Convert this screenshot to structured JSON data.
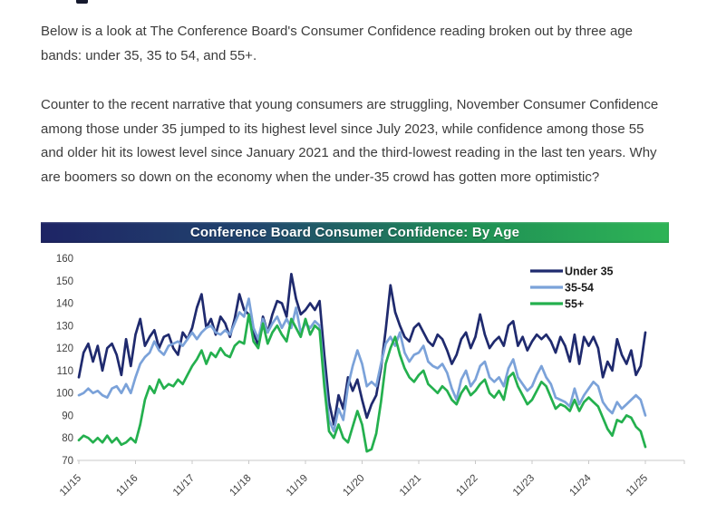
{
  "article": {
    "paragraph1": "Below is a look at The Conference Board's Consumer Confidence reading broken out by three age bands: under 35, 35 to 54, and 55+.",
    "paragraph2": "Counter to the recent narrative that young consumers are struggling, November Consumer Confidence among those under 35 jumped to its highest level since July 2023, while confidence among those 55 and older hit its lowest level since January 2021 and the third-lowest reading in the last ten years.  Why are boomers so down on the economy when the under-35 crowd has gotten more optimistic?"
  },
  "chart": {
    "title": "Conference Board Consumer Confidence: By Age",
    "title_bar_gradient": [
      "#1e2465",
      "#21456e",
      "#1f8f55",
      "#2eb456"
    ],
    "axis_color": "#c8c8c8",
    "tick_label_color": "#404040",
    "legend_text_color": "#1a1a1a"
  },
  "chart_data": {
    "type": "line",
    "title": "Conference Board Consumer Confidence: By Age",
    "x_start": "2015-11",
    "x_end": "2025-11",
    "x_frequency": "monthly",
    "x_tick_labels": [
      "11/15",
      "11/16",
      "11/17",
      "11/18",
      "11/19",
      "11/20",
      "11/21",
      "11/22",
      "11/23",
      "11/24",
      "11/25"
    ],
    "ylim": [
      70,
      160
    ],
    "ytick_step": 10,
    "yticks": [
      70,
      80,
      90,
      100,
      110,
      120,
      130,
      140,
      150,
      160
    ],
    "grid": false,
    "legend_position": "top-right",
    "series": [
      {
        "name": "Under 35",
        "color": "#1f2a6e",
        "values": [
          107,
          118,
          122,
          114,
          121,
          110,
          120,
          122,
          117,
          108,
          124,
          112,
          126,
          133,
          121,
          125,
          128,
          120,
          125,
          126,
          120,
          117,
          127,
          124,
          129,
          138,
          144,
          129,
          133,
          126,
          134,
          131,
          125,
          133,
          144,
          137,
          135,
          127,
          121,
          134,
          127,
          135,
          141,
          140,
          134,
          153,
          142,
          135,
          137,
          140,
          137,
          141,
          117,
          96,
          86,
          99,
          93,
          107,
          101,
          106,
          97,
          89,
          95,
          99,
          111,
          128,
          148,
          136,
          130,
          125,
          123,
          129,
          131,
          127,
          123,
          121,
          126,
          124,
          119,
          113,
          117,
          124,
          127,
          120,
          125,
          135,
          126,
          120,
          123,
          125,
          121,
          130,
          132,
          121,
          125,
          119,
          123,
          126,
          124,
          126,
          123,
          118,
          125,
          121,
          114,
          126,
          113,
          125,
          121,
          125,
          120,
          107,
          114,
          110,
          124,
          117,
          113,
          119,
          108,
          112,
          127
        ]
      },
      {
        "name": "35-54",
        "color": "#7ba2d9",
        "values": [
          99,
          100,
          102,
          100,
          101,
          99,
          98,
          102,
          103,
          100,
          104,
          100,
          107,
          113,
          116,
          118,
          123,
          119,
          117,
          121,
          122,
          123,
          121,
          124,
          127,
          124,
          127,
          129,
          130,
          127,
          126,
          128,
          126,
          131,
          136,
          134,
          142,
          129,
          124,
          133,
          127,
          131,
          134,
          129,
          133,
          129,
          138,
          127,
          131,
          129,
          132,
          130,
          108,
          88,
          83,
          93,
          88,
          103,
          112,
          119,
          113,
          103,
          105,
          103,
          113,
          122,
          125,
          121,
          127,
          118,
          114,
          117,
          118,
          121,
          114,
          112,
          111,
          113,
          109,
          102,
          97,
          106,
          110,
          103,
          106,
          112,
          114,
          107,
          105,
          107,
          103,
          111,
          115,
          107,
          104,
          101,
          103,
          108,
          112,
          107,
          104,
          98,
          97,
          96,
          94,
          102,
          95,
          99,
          102,
          105,
          103,
          96,
          93,
          91,
          96,
          93,
          95,
          97,
          99,
          97,
          90
        ]
      },
      {
        "name": "55+",
        "color": "#24b04e",
        "values": [
          79,
          81,
          80,
          78,
          80,
          78,
          81,
          78,
          80,
          77,
          78,
          80,
          78,
          86,
          97,
          103,
          100,
          106,
          102,
          104,
          103,
          106,
          104,
          108,
          112,
          115,
          119,
          113,
          118,
          116,
          120,
          117,
          116,
          121,
          123,
          122,
          135,
          123,
          120,
          131,
          122,
          127,
          130,
          126,
          123,
          133,
          129,
          125,
          133,
          126,
          130,
          128,
          103,
          83,
          80,
          86,
          80,
          78,
          85,
          92,
          86,
          74,
          75,
          82,
          96,
          113,
          120,
          125,
          117,
          111,
          107,
          105,
          108,
          110,
          104,
          102,
          100,
          103,
          101,
          97,
          95,
          100,
          103,
          99,
          101,
          104,
          106,
          100,
          98,
          101,
          97,
          107,
          109,
          103,
          99,
          95,
          97,
          101,
          105,
          103,
          98,
          93,
          95,
          94,
          92,
          97,
          92,
          96,
          98,
          96,
          94,
          89,
          84,
          81,
          88,
          87,
          90,
          89,
          85,
          83,
          76
        ]
      }
    ]
  }
}
